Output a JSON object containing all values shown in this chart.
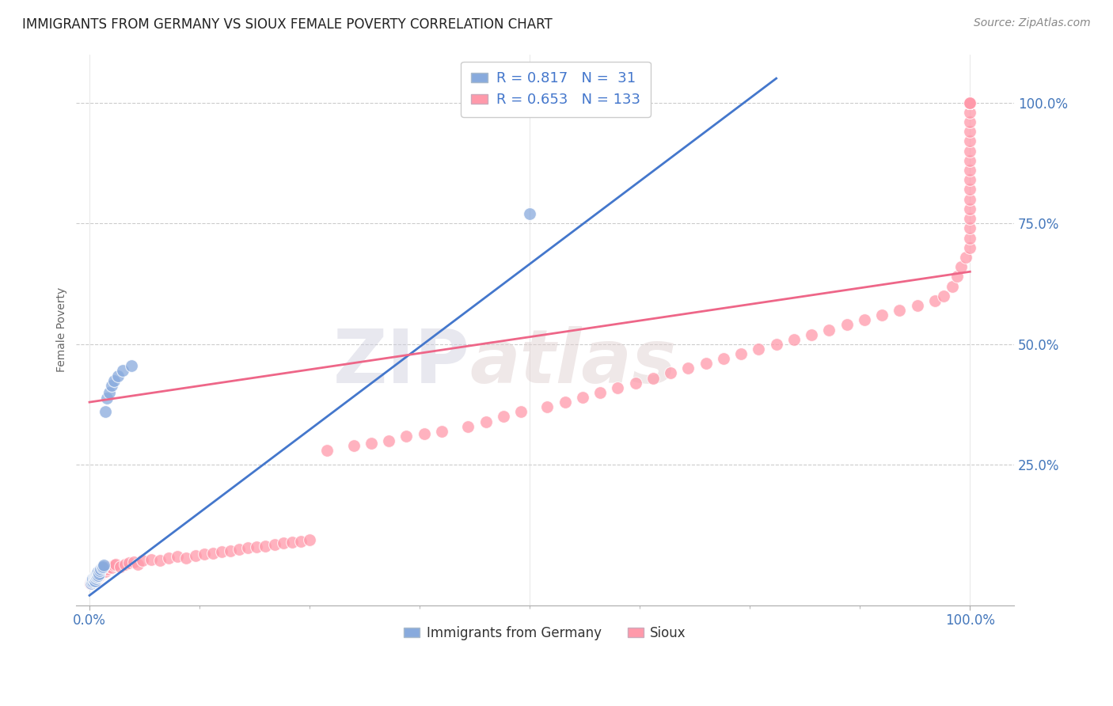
{
  "title": "IMMIGRANTS FROM GERMANY VS SIOUX FEMALE POVERTY CORRELATION CHART",
  "source": "Source: ZipAtlas.com",
  "ylabel": "Female Poverty",
  "watermark_zip": "ZIP",
  "watermark_atlas": "atlas",
  "legend_entries": [
    "Immigrants from Germany",
    "Sioux"
  ],
  "blue_R": 0.817,
  "blue_N": 31,
  "pink_R": 0.653,
  "pink_N": 133,
  "blue_color": "#88AADD",
  "pink_color": "#FF99AA",
  "blue_line_color": "#4477CC",
  "pink_line_color": "#EE6688",
  "background_color": "#FFFFFF",
  "blue_line_x": [
    0.0,
    0.78
  ],
  "blue_line_y": [
    -0.02,
    1.05
  ],
  "pink_line_x": [
    0.0,
    1.0
  ],
  "pink_line_y": [
    0.38,
    0.65
  ],
  "blue_x": [
    0.002,
    0.003,
    0.004,
    0.004,
    0.005,
    0.005,
    0.006,
    0.006,
    0.007,
    0.007,
    0.008,
    0.008,
    0.009,
    0.009,
    0.01,
    0.01,
    0.011,
    0.012,
    0.013,
    0.014,
    0.015,
    0.016,
    0.018,
    0.02,
    0.022,
    0.025,
    0.028,
    0.032,
    0.038,
    0.048,
    0.5
  ],
  "blue_y": [
    0.005,
    0.008,
    0.01,
    0.015,
    0.012,
    0.018,
    0.01,
    0.02,
    0.015,
    0.022,
    0.018,
    0.025,
    0.02,
    0.028,
    0.022,
    0.03,
    0.025,
    0.032,
    0.035,
    0.038,
    0.04,
    0.042,
    0.36,
    0.388,
    0.4,
    0.415,
    0.425,
    0.435,
    0.445,
    0.455,
    0.77
  ],
  "pink_x": [
    0.001,
    0.002,
    0.003,
    0.003,
    0.004,
    0.004,
    0.005,
    0.005,
    0.006,
    0.006,
    0.007,
    0.007,
    0.008,
    0.008,
    0.009,
    0.009,
    0.01,
    0.01,
    0.011,
    0.011,
    0.012,
    0.012,
    0.013,
    0.013,
    0.014,
    0.015,
    0.016,
    0.017,
    0.018,
    0.019,
    0.02,
    0.022,
    0.025,
    0.028,
    0.03,
    0.035,
    0.04,
    0.045,
    0.05,
    0.055,
    0.06,
    0.07,
    0.08,
    0.09,
    0.1,
    0.11,
    0.12,
    0.13,
    0.14,
    0.15,
    0.16,
    0.17,
    0.18,
    0.19,
    0.2,
    0.21,
    0.22,
    0.23,
    0.24,
    0.25,
    0.27,
    0.3,
    0.32,
    0.34,
    0.36,
    0.38,
    0.4,
    0.43,
    0.45,
    0.47,
    0.49,
    0.52,
    0.54,
    0.56,
    0.58,
    0.6,
    0.62,
    0.64,
    0.66,
    0.68,
    0.7,
    0.72,
    0.74,
    0.76,
    0.78,
    0.8,
    0.82,
    0.84,
    0.86,
    0.88,
    0.9,
    0.92,
    0.94,
    0.96,
    0.97,
    0.98,
    0.985,
    0.99,
    0.995,
    1.0,
    1.0,
    1.0,
    1.0,
    1.0,
    1.0,
    1.0,
    1.0,
    1.0,
    1.0,
    1.0,
    1.0,
    1.0,
    1.0,
    1.0,
    1.0,
    1.0,
    1.0,
    1.0,
    1.0,
    1.0,
    1.0,
    1.0,
    1.0,
    1.0,
    1.0,
    1.0,
    1.0,
    1.0,
    1.0,
    1.0,
    1.0,
    1.0,
    1.0
  ],
  "pink_y": [
    0.005,
    0.008,
    0.006,
    0.01,
    0.008,
    0.012,
    0.01,
    0.015,
    0.012,
    0.018,
    0.01,
    0.015,
    0.012,
    0.02,
    0.015,
    0.022,
    0.018,
    0.025,
    0.02,
    0.028,
    0.022,
    0.03,
    0.025,
    0.032,
    0.028,
    0.03,
    0.032,
    0.035,
    0.03,
    0.038,
    0.035,
    0.04,
    0.038,
    0.042,
    0.045,
    0.04,
    0.045,
    0.048,
    0.05,
    0.045,
    0.052,
    0.055,
    0.052,
    0.058,
    0.06,
    0.058,
    0.062,
    0.065,
    0.068,
    0.07,
    0.072,
    0.075,
    0.078,
    0.08,
    0.082,
    0.085,
    0.088,
    0.09,
    0.092,
    0.095,
    0.28,
    0.29,
    0.295,
    0.3,
    0.31,
    0.315,
    0.32,
    0.33,
    0.34,
    0.35,
    0.36,
    0.37,
    0.38,
    0.39,
    0.4,
    0.41,
    0.42,
    0.43,
    0.44,
    0.45,
    0.46,
    0.47,
    0.48,
    0.49,
    0.5,
    0.51,
    0.52,
    0.53,
    0.54,
    0.55,
    0.56,
    0.57,
    0.58,
    0.59,
    0.6,
    0.62,
    0.64,
    0.66,
    0.68,
    0.7,
    0.72,
    0.74,
    0.76,
    0.78,
    0.8,
    0.82,
    0.84,
    0.86,
    0.88,
    0.9,
    0.92,
    0.94,
    0.96,
    0.98,
    1.0,
    1.0,
    1.0,
    1.0,
    1.0,
    1.0,
    1.0,
    1.0,
    1.0,
    1.0,
    1.0,
    1.0,
    1.0,
    1.0,
    1.0,
    1.0,
    1.0,
    1.0,
    1.0
  ],
  "xlim": [
    -0.015,
    1.05
  ],
  "ylim": [
    -0.04,
    1.1
  ],
  "yticks": [
    0.0,
    0.25,
    0.5,
    0.75,
    1.0
  ],
  "yticklabels": [
    "",
    "25.0%",
    "50.0%",
    "75.0%",
    "100.0%"
  ],
  "xticks": [
    0.0,
    1.0
  ],
  "xticklabels": [
    "0.0%",
    "100.0%"
  ],
  "tick_color": "#4477BB",
  "title_fontsize": 12,
  "label_fontsize": 12,
  "tick_fontsize": 12
}
